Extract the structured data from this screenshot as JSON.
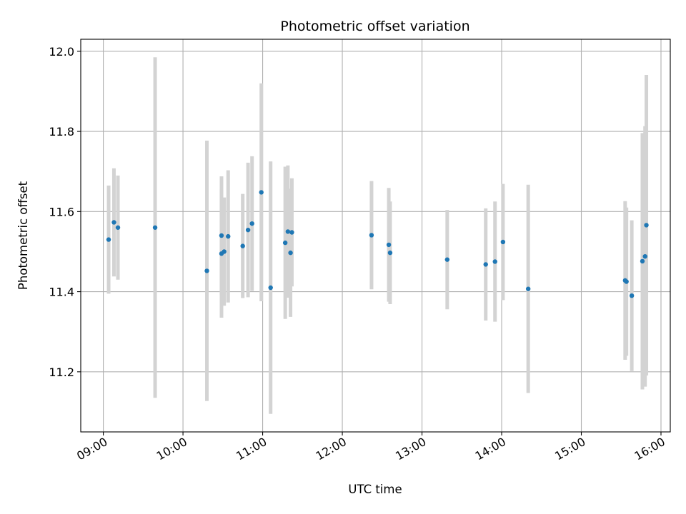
{
  "chart_data": {
    "type": "scatter",
    "title": "Photometric offset variation",
    "xlabel": "UTC time",
    "ylabel": "Photometric offset",
    "xlim": [
      "08:43",
      "16:07"
    ],
    "ylim": [
      11.05,
      12.03
    ],
    "x_ticks": [
      "09:00",
      "10:00",
      "11:00",
      "12:00",
      "13:00",
      "14:00",
      "15:00",
      "16:00"
    ],
    "y_ticks": [
      11.2,
      11.4,
      11.6,
      11.8,
      12.0
    ],
    "y_tick_labels": [
      "11.2",
      "11.4",
      "11.6",
      "11.8",
      "12.0"
    ],
    "grid": true,
    "point_color": "#1f77b4",
    "errorbar_color": "#d3d3d3",
    "points": [
      {
        "t": "09:04",
        "y": 11.53,
        "err": 0.135
      },
      {
        "t": "09:08",
        "y": 11.573,
        "err": 0.135
      },
      {
        "t": "09:11",
        "y": 11.56,
        "err": 0.13
      },
      {
        "t": "09:39",
        "y": 11.56,
        "err": 0.425
      },
      {
        "t": "10:18",
        "y": 11.452,
        "err": 0.325
      },
      {
        "t": "10:29",
        "y": 11.54,
        "err": 0.148
      },
      {
        "t": "10:29",
        "y": 11.495,
        "err": 0.16
      },
      {
        "t": "10:31",
        "y": 11.5,
        "err": 0.135
      },
      {
        "t": "10:34",
        "y": 11.538,
        "err": 0.165
      },
      {
        "t": "10:45",
        "y": 11.514,
        "err": 0.13
      },
      {
        "t": "10:49",
        "y": 11.554,
        "err": 0.168
      },
      {
        "t": "10:52",
        "y": 11.57,
        "err": 0.168
      },
      {
        "t": "10:59",
        "y": 11.648,
        "err": 0.272
      },
      {
        "t": "11:06",
        "y": 11.41,
        "err": 0.315
      },
      {
        "t": "11:17",
        "y": 11.522,
        "err": 0.19
      },
      {
        "t": "11:19",
        "y": 11.55,
        "err": 0.165
      },
      {
        "t": "11:21",
        "y": 11.497,
        "err": 0.16
      },
      {
        "t": "11:22",
        "y": 11.548,
        "err": 0.135
      },
      {
        "t": "12:22",
        "y": 11.541,
        "err": 0.135
      },
      {
        "t": "12:35",
        "y": 11.517,
        "err": 0.142
      },
      {
        "t": "12:36",
        "y": 11.497,
        "err": 0.128
      },
      {
        "t": "13:19",
        "y": 11.48,
        "err": 0.124
      },
      {
        "t": "13:48",
        "y": 11.468,
        "err": 0.14
      },
      {
        "t": "13:55",
        "y": 11.475,
        "err": 0.15
      },
      {
        "t": "14:01",
        "y": 11.524,
        "err": 0.145
      },
      {
        "t": "14:20",
        "y": 11.407,
        "err": 0.26
      },
      {
        "t": "15:33",
        "y": 11.428,
        "err": 0.198
      },
      {
        "t": "15:34",
        "y": 11.425,
        "err": 0.185
      },
      {
        "t": "15:38",
        "y": 11.39,
        "err": 0.188
      },
      {
        "t": "15:46",
        "y": 11.476,
        "err": 0.32
      },
      {
        "t": "15:48",
        "y": 11.488,
        "err": 0.325
      },
      {
        "t": "15:49",
        "y": 11.566,
        "err": 0.375
      }
    ]
  }
}
